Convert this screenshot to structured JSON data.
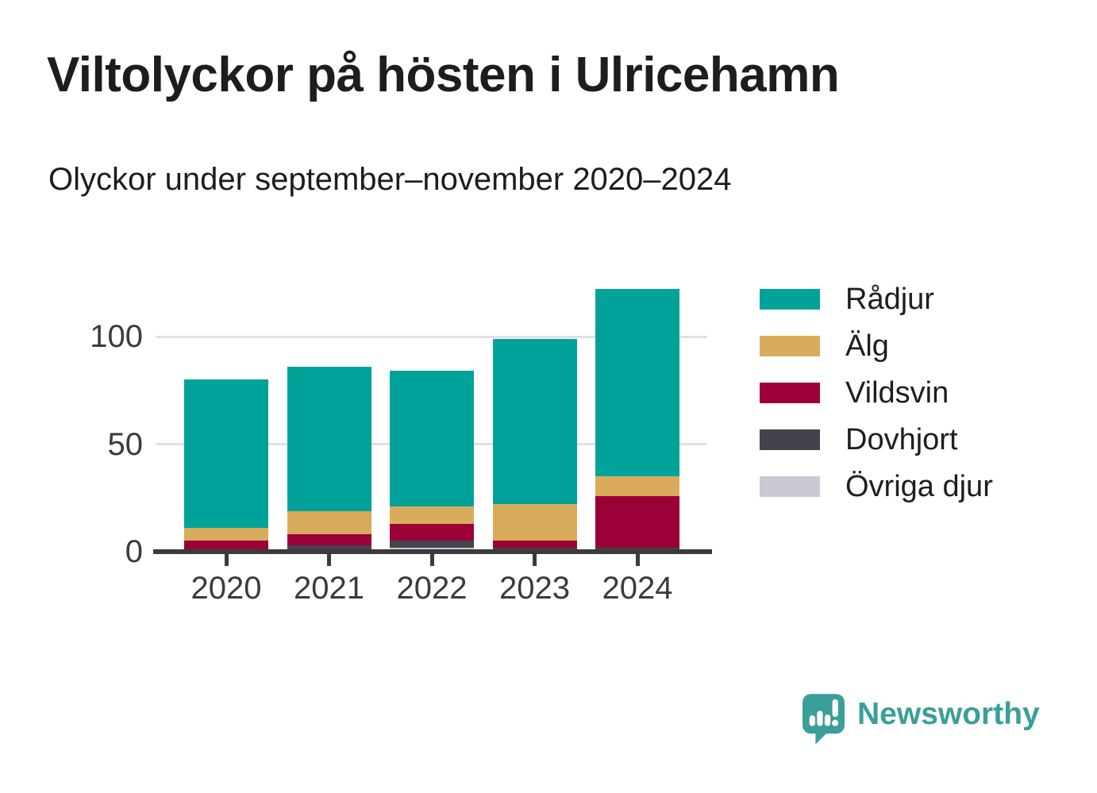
{
  "header": {
    "title": "Viltolyckor på hösten i Ulricehamn",
    "subtitle": "Olyckor under september–november 2020–2024"
  },
  "chart_data": {
    "type": "bar",
    "stacked": true,
    "title": "Viltolyckor på hösten i Ulricehamn",
    "subtitle": "Olyckor under september–november 2020–2024",
    "categories": [
      "2020",
      "2021",
      "2022",
      "2023",
      "2024"
    ],
    "series": [
      {
        "name": "Rådjur",
        "color": "#00a29a",
        "values": [
          69,
          67,
          63,
          77,
          87
        ]
      },
      {
        "name": "Älg",
        "color": "#d9ac5b",
        "values": [
          6,
          11,
          8,
          17,
          9
        ]
      },
      {
        "name": "Vildsvin",
        "color": "#9b0038",
        "values": [
          5,
          5,
          8,
          3,
          24
        ]
      },
      {
        "name": "Dovhjort",
        "color": "#45414d",
        "values": [
          0,
          2,
          3,
          2,
          2
        ]
      },
      {
        "name": "Övriga djur",
        "color": "#cbcad4",
        "values": [
          0,
          1,
          2,
          0,
          0
        ]
      }
    ],
    "stack_order_bottom_to_top": [
      "Övriga djur",
      "Dovhjort",
      "Vildsvin",
      "Älg",
      "Rådjur"
    ],
    "totals": [
      80,
      86,
      84,
      99,
      122
    ],
    "xlabel": "",
    "ylabel": "",
    "yticks": [
      0,
      50,
      100
    ],
    "ylim": [
      0,
      125
    ],
    "grid": "horizontal",
    "legend_position": "right",
    "colors": {
      "axis": "#3b3b3b",
      "gridline": "#e1e1e1",
      "tick_label": "#3b3b3b"
    }
  },
  "brand": {
    "name": "Newsworthy",
    "color": "#3a9f98",
    "logo_icon": "speech-bubble-bar-chart-icon"
  }
}
